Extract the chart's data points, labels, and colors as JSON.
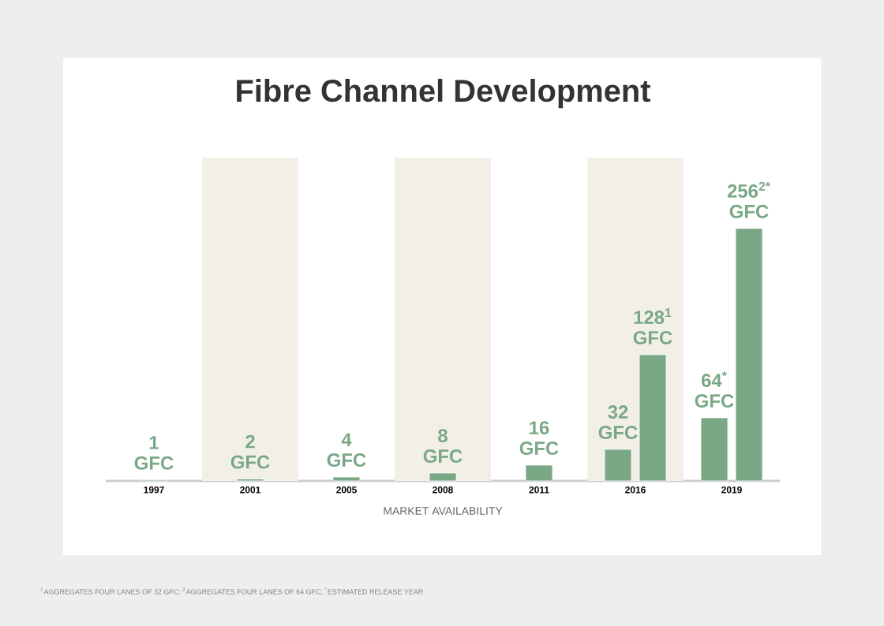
{
  "chart_data": {
    "type": "bar",
    "title": "Fibre Channel Development",
    "xlabel": "MARKET AVAILABILITY",
    "categories": [
      "1997",
      "2001",
      "2005",
      "2008",
      "2011",
      "2016",
      "2019"
    ],
    "series": [
      {
        "color": "#7aa886",
        "values": [
          1,
          2,
          4,
          8,
          16,
          32,
          64
        ],
        "value_labels": [
          "1 GFC",
          "2 GFC",
          "4 GFC",
          "8 GFC",
          "16 GFC",
          "32 GFC",
          "64$^{*}$ GFC"
        ]
      },
      {
        "color": "#7aa886",
        "values": [
          null,
          null,
          null,
          null,
          null,
          128,
          256
        ],
        "value_labels": [
          null,
          null,
          null,
          null,
          null,
          "128$^{1}$ GFC",
          "256$^{2*}$ GFC"
        ]
      }
    ],
    "bands": [
      {
        "axis": "x",
        "from": "2001",
        "to": "2001",
        "color": "#f2f0e6"
      },
      {
        "axis": "x",
        "from": "2008",
        "to": "2008",
        "color": "#f2f0e6"
      },
      {
        "axis": "x",
        "from": "2016",
        "to": "2016",
        "color": "#f2f0e6"
      }
    ],
    "annotations": [
      "$^{1}$AGGREGATES FOUR LANES OF 32 GFC; $^{2}$AGGREGATES FOUR LANES OF 64 GFC; $^{*}$ESTIMATED RELEASE YEAR"
    ]
  }
}
